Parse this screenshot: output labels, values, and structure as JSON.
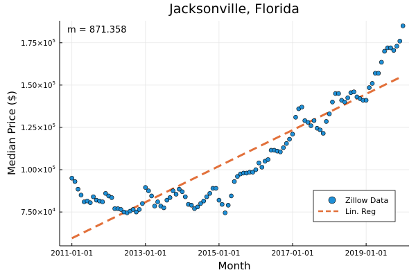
{
  "chart_data": {
    "type": "scatter",
    "title": "Jacksonville, Florida",
    "xlabel": "Month",
    "ylabel": "Median Price ($)",
    "annotation": "m = 871.358",
    "grid": true,
    "legend_position": "bottom-right",
    "x_ticks": [
      "2011-01-01",
      "2013-01-01",
      "2015-01-01",
      "2017-01-01",
      "2019-01-01"
    ],
    "y_ticks": [
      {
        "mantissa": "7.50",
        "exp": "4",
        "value": 75000
      },
      {
        "mantissa": "1.00",
        "exp": "5",
        "value": 100000
      },
      {
        "mantissa": "1.25",
        "exp": "5",
        "value": 125000
      },
      {
        "mantissa": "1.50",
        "exp": "5",
        "value": 150000
      },
      {
        "mantissa": "1.75",
        "exp": "5",
        "value": 175000
      }
    ],
    "xlim": [
      "2010-09-01",
      "2020-03-01"
    ],
    "ylim": [
      55000,
      188000
    ],
    "colors": {
      "scatter": "#1f8fd6",
      "regression": "#e2703a"
    },
    "series": [
      {
        "name": "Zillow Data",
        "kind": "scatter",
        "start": "2011-01",
        "values": [
          95000,
          93000,
          88500,
          85000,
          81000,
          81500,
          80500,
          84000,
          82000,
          81500,
          81000,
          86000,
          84500,
          83500,
          77000,
          77000,
          76500,
          75000,
          74500,
          75500,
          76500,
          75000,
          76500,
          80000,
          89500,
          87500,
          84500,
          78500,
          81000,
          78500,
          77500,
          82000,
          83500,
          87500,
          85500,
          88500,
          87000,
          84000,
          79500,
          79000,
          77000,
          78000,
          80000,
          81500,
          84000,
          86000,
          89000,
          89000,
          82000,
          79500,
          74500,
          79000,
          84500,
          93000,
          96000,
          97500,
          98000,
          98000,
          98500,
          98500,
          100000,
          104000,
          101500,
          105000,
          106000,
          111500,
          111500,
          111000,
          110500,
          113000,
          115500,
          118000,
          121000,
          131000,
          136000,
          137000,
          129000,
          128000,
          126000,
          129000,
          124500,
          123500,
          121500,
          128500,
          133000,
          140000,
          145000,
          145000,
          141000,
          140000,
          142500,
          145500,
          146000,
          143000,
          142000,
          141000,
          141000,
          148500,
          151000,
          157000,
          157000,
          163500,
          170000,
          172000,
          172000,
          170500,
          173000,
          176000,
          185000
        ]
      },
      {
        "name": "Lin. Reg",
        "kind": "line",
        "start": "2011-01",
        "end": "2019-12",
        "values": [
          59500,
          154500
        ]
      }
    ]
  }
}
